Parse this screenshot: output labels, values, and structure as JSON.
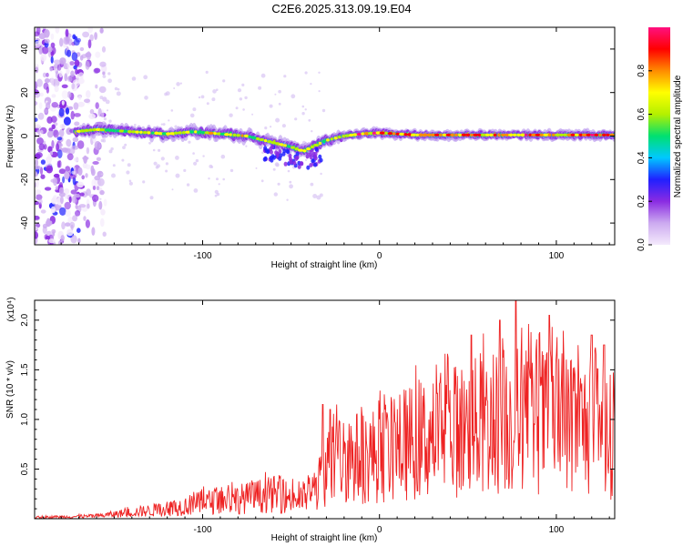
{
  "title": "C2E6.2025.313.09.19.E04",
  "chart_data": [
    {
      "type": "heatmap",
      "name": "spectrogram",
      "xlabel": "Height of straight line (km)",
      "ylabel": "Frequency (Hz)",
      "xlim": [
        -195,
        133
      ],
      "ylim": [
        -50,
        50
      ],
      "x_ticks": [
        "-100",
        "0",
        "100"
      ],
      "x_tick_values": [
        -100,
        0,
        100
      ],
      "y_ticks": [
        "40",
        "20",
        "0",
        "-20",
        "-40"
      ],
      "y_tick_values": [
        40,
        20,
        0,
        -20,
        -40
      ],
      "colorbar": {
        "label": "Normalized spectral amplitude",
        "range": [
          0,
          1
        ],
        "ticks": [
          "0.0",
          "0.2",
          "0.4",
          "0.6",
          "0.8"
        ],
        "tick_values": [
          0.0,
          0.2,
          0.4,
          0.6,
          0.8
        ],
        "colors": [
          "#f4eafc",
          "#ccaaf0",
          "#8a2be2",
          "#2020ff",
          "#00c8ff",
          "#00e070",
          "#b4f000",
          "#ffff00",
          "#ff8c00",
          "#ff0000",
          "#ff1080"
        ]
      },
      "ridge": [
        {
          "x": -172,
          "y": 2
        },
        {
          "x": -160,
          "y": 3
        },
        {
          "x": -140,
          "y": 2
        },
        {
          "x": -120,
          "y": 1
        },
        {
          "x": -105,
          "y": 2
        },
        {
          "x": -90,
          "y": 1
        },
        {
          "x": -75,
          "y": 0
        },
        {
          "x": -60,
          "y": -3
        },
        {
          "x": -50,
          "y": -5
        },
        {
          "x": -43,
          "y": -7
        },
        {
          "x": -38,
          "y": -5
        },
        {
          "x": -30,
          "y": -2
        },
        {
          "x": -20,
          "y": 0
        },
        {
          "x": -10,
          "y": 1
        },
        {
          "x": 0,
          "y": 1.5
        },
        {
          "x": 20,
          "y": 0.5
        },
        {
          "x": 50,
          "y": 0.5
        },
        {
          "x": 80,
          "y": 0.5
        },
        {
          "x": 105,
          "y": 0.5
        },
        {
          "x": 133,
          "y": 0.5
        }
      ],
      "noise_region_x": [
        -195,
        -155
      ]
    },
    {
      "type": "line",
      "name": "snr",
      "xlabel": "Height of straight line (km)",
      "ylabel": "SNR (10 * v/v)",
      "y_scale_label": "(x10⁴)",
      "color": "#ee2222",
      "xlim": [
        -195,
        133
      ],
      "ylim": [
        0,
        2.2
      ],
      "x_ticks": [
        "-100",
        "0",
        "100"
      ],
      "x_tick_values": [
        -100,
        0,
        100
      ],
      "y_ticks": [
        "0.5",
        "1.0",
        "1.5",
        "2.0"
      ],
      "y_tick_values": [
        0.5,
        1.0,
        1.5,
        2.0
      ],
      "envelope": [
        {
          "x": -195,
          "y": 0.02
        },
        {
          "x": -160,
          "y": 0.04
        },
        {
          "x": -140,
          "y": 0.1
        },
        {
          "x": -120,
          "y": 0.15
        },
        {
          "x": -100,
          "y": 0.25
        },
        {
          "x": -75,
          "y": 0.32
        },
        {
          "x": -60,
          "y": 0.38
        },
        {
          "x": -45,
          "y": 0.3
        },
        {
          "x": -36,
          "y": 0.45
        },
        {
          "x": -28,
          "y": 0.85
        },
        {
          "x": -20,
          "y": 0.95
        },
        {
          "x": -10,
          "y": 0.95
        },
        {
          "x": 0,
          "y": 1.0
        },
        {
          "x": 20,
          "y": 1.2
        },
        {
          "x": 40,
          "y": 1.35
        },
        {
          "x": 60,
          "y": 1.45
        },
        {
          "x": 80,
          "y": 1.55
        },
        {
          "x": 100,
          "y": 1.5
        },
        {
          "x": 120,
          "y": 1.4
        },
        {
          "x": 133,
          "y": 1.25
        }
      ],
      "peaks": [
        {
          "x": -32,
          "y": 1.15
        },
        {
          "x": -28,
          "y": 1.1
        },
        {
          "x": 52,
          "y": 1.85
        },
        {
          "x": 68,
          "y": 2.0
        },
        {
          "x": 77,
          "y": 2.2
        },
        {
          "x": 96,
          "y": 2.05
        },
        {
          "x": 120,
          "y": 1.85
        },
        {
          "x": 127,
          "y": 1.75
        }
      ]
    }
  ]
}
